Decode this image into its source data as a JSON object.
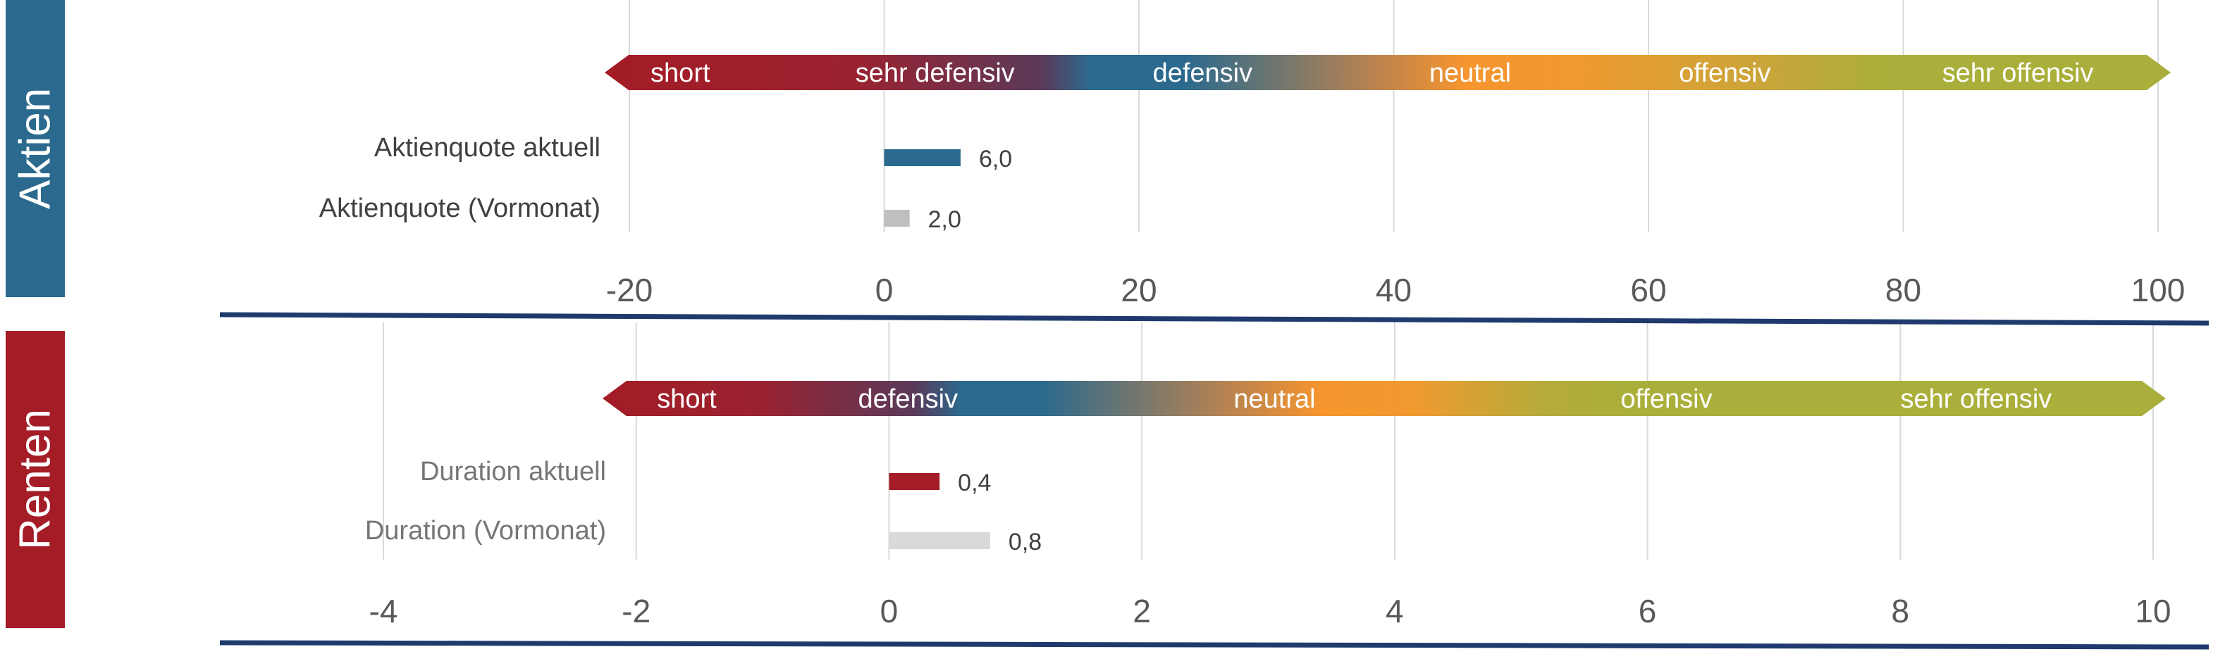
{
  "panels": {
    "aktien": {
      "label": "Aktien",
      "color": "#2b6a8e"
    },
    "renten": {
      "label": "Renten",
      "color": "#a31c26"
    }
  },
  "chart_data": [
    {
      "type": "bar",
      "orientation": "horizontal",
      "title": "",
      "xlim": [
        -20,
        100
      ],
      "xticks": [
        -20,
        0,
        20,
        40,
        60,
        80,
        100
      ],
      "xtick_labels": [
        "-20",
        "0",
        "20",
        "40",
        "60",
        "80",
        "100"
      ],
      "grid": "vertical",
      "scale_bar": {
        "labels": [
          "short",
          "sehr defensiv",
          "defensiv",
          "neutral",
          "offensiv",
          "sehr offensiv"
        ],
        "label_positions": [
          -16,
          4,
          25,
          46,
          66,
          89
        ]
      },
      "categories": [
        "Aktienquote aktuell",
        "Aktienquote (Vormonat)"
      ],
      "values": [
        6.0,
        2.0
      ],
      "value_labels": [
        "6,0",
        "2,0"
      ],
      "colors": [
        "#2b6a8e",
        "#bfbfbf"
      ]
    },
    {
      "type": "bar",
      "orientation": "horizontal",
      "title": "",
      "xlim": [
        -4,
        10
      ],
      "xticks": [
        -4,
        -2,
        0,
        2,
        4,
        6,
        8,
        10
      ],
      "xtick_labels": [
        "-4",
        "-2",
        "0",
        "2",
        "4",
        "6",
        "8",
        "10"
      ],
      "grid": "vertical",
      "scale_bar": {
        "labels": [
          "short",
          "defensiv",
          "neutral",
          "offensiv",
          "sehr offensiv"
        ],
        "label_positions": [
          -1.6,
          0.15,
          3.05,
          6.15,
          8.6
        ]
      },
      "categories": [
        "Duration aktuell",
        "Duration (Vormonat)"
      ],
      "values": [
        0.4,
        0.8
      ],
      "value_labels": [
        "0,4",
        "0,8"
      ],
      "colors": [
        "#a31c26",
        "#d9d9d9"
      ]
    }
  ]
}
